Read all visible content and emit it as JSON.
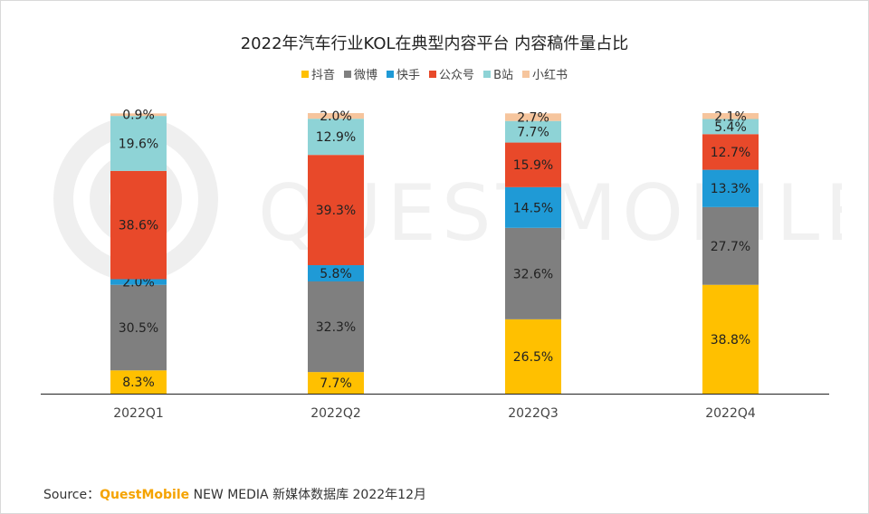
{
  "chart_data": {
    "type": "bar",
    "stacked": true,
    "title": "2022年汽车行业KOL在典型内容平台 内容稿件量占比",
    "categories": [
      "2022Q1",
      "2022Q2",
      "2022Q3",
      "2022Q4"
    ],
    "ylim": [
      0,
      100
    ],
    "legend_position": "top",
    "series": [
      {
        "name": "抖音",
        "color": "#ffc000",
        "values": [
          8.3,
          7.7,
          26.5,
          38.8
        ]
      },
      {
        "name": "微博",
        "color": "#7f7f7f",
        "values": [
          30.5,
          32.3,
          32.6,
          27.7
        ]
      },
      {
        "name": "快手",
        "color": "#1f9ad6",
        "values": [
          2.0,
          5.8,
          14.5,
          13.3
        ]
      },
      {
        "name": "公众号",
        "color": "#e8492a",
        "values": [
          38.6,
          39.3,
          15.9,
          12.7
        ]
      },
      {
        "name": "B站",
        "color": "#8ed3d6",
        "values": [
          19.6,
          12.9,
          7.7,
          5.4
        ]
      },
      {
        "name": "小红书",
        "color": "#f6c59d",
        "values": [
          0.9,
          2.0,
          2.7,
          2.1
        ]
      }
    ]
  },
  "watermark": "QUESTMOBILE",
  "source": {
    "prefix": "Source：",
    "brand": "QuestMobile",
    "rest": " NEW MEDIA 新媒体数据库 2022年12月"
  }
}
